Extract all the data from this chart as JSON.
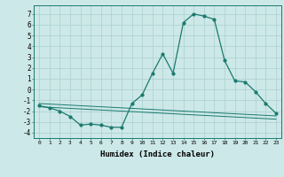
{
  "x": [
    0,
    1,
    2,
    3,
    4,
    5,
    6,
    7,
    8,
    9,
    10,
    11,
    12,
    13,
    14,
    15,
    16,
    17,
    18,
    19,
    20,
    21,
    22,
    23
  ],
  "y_main": [
    -1.5,
    -1.7,
    -2.0,
    -2.5,
    -3.3,
    -3.2,
    -3.3,
    -3.5,
    -3.5,
    -1.3,
    -0.5,
    1.5,
    3.3,
    1.5,
    6.2,
    7.0,
    6.8,
    6.5,
    2.7,
    0.8,
    0.7,
    -0.2,
    -1.3,
    -2.2
  ],
  "y_line2": [
    -1.3,
    -1.35,
    -1.4,
    -1.45,
    -1.5,
    -1.55,
    -1.6,
    -1.65,
    -1.7,
    -1.75,
    -1.8,
    -1.85,
    -1.9,
    -1.95,
    -2.0,
    -2.05,
    -2.1,
    -2.15,
    -2.2,
    -2.25,
    -2.3,
    -2.35,
    -2.4,
    -2.45
  ],
  "y_line3": [
    -1.6,
    -1.65,
    -1.7,
    -1.75,
    -1.8,
    -1.85,
    -1.9,
    -1.95,
    -2.0,
    -2.05,
    -2.1,
    -2.15,
    -2.2,
    -2.25,
    -2.3,
    -2.35,
    -2.4,
    -2.45,
    -2.5,
    -2.55,
    -2.6,
    -2.65,
    -2.7,
    -2.75
  ],
  "line_color": "#1a7a6e",
  "bg_color": "#cde8e8",
  "grid_color": "#aacfcf",
  "xlabel": "Humidex (Indice chaleur)",
  "ylim": [
    -4.5,
    7.8
  ],
  "xlim": [
    -0.5,
    23.5
  ],
  "yticks": [
    -4,
    -3,
    -2,
    -1,
    0,
    1,
    2,
    3,
    4,
    5,
    6,
    7
  ],
  "xticks": [
    0,
    1,
    2,
    3,
    4,
    5,
    6,
    7,
    8,
    9,
    10,
    11,
    12,
    13,
    14,
    15,
    16,
    17,
    18,
    19,
    20,
    21,
    22,
    23
  ]
}
